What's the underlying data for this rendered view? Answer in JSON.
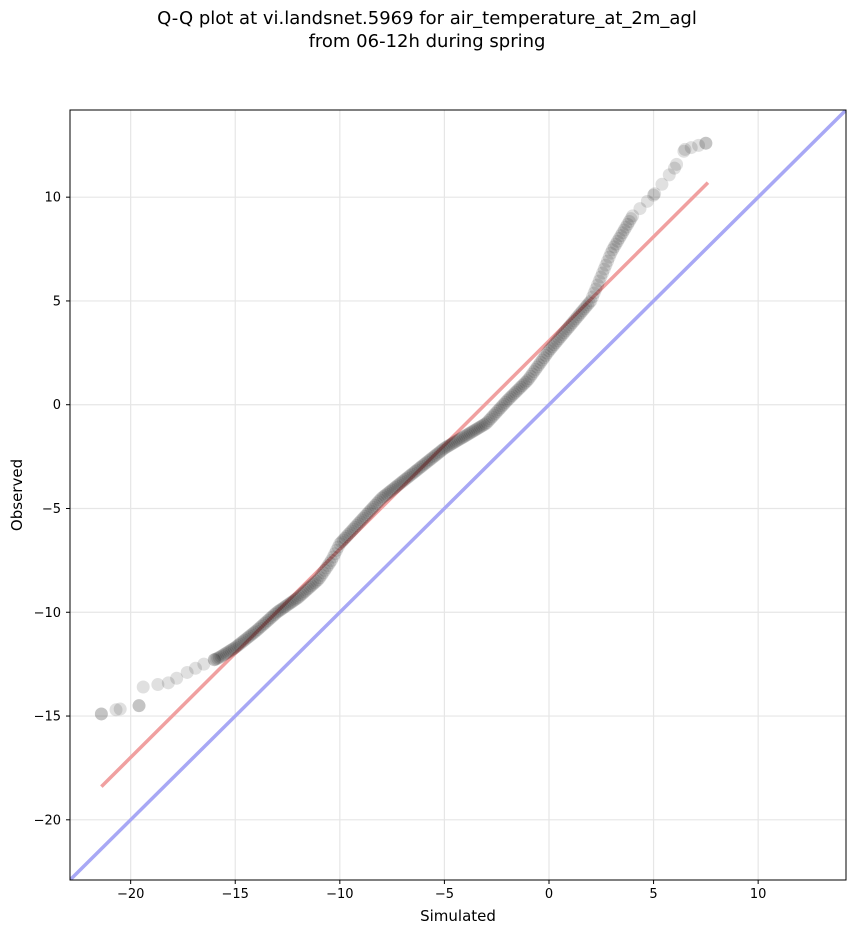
{
  "chart_data": {
    "type": "scatter",
    "title": "Q-Q plot at vi.landsnet.5969 for air_temperature_at_2m_agl",
    "subtitle": "from 06-12h during spring",
    "xlabel": "Simulated",
    "ylabel": "Observed",
    "xlim": [
      -22.9,
      14.2
    ],
    "ylim": [
      -22.9,
      14.2
    ],
    "xticks": [
      -20,
      -15,
      -10,
      -5,
      0,
      5,
      10
    ],
    "yticks": [
      -20,
      -15,
      -10,
      -5,
      0,
      5,
      10
    ],
    "xtick_labels": [
      "−20",
      "−15",
      "−10",
      "−5",
      "0",
      "5",
      "10"
    ],
    "ytick_labels": [
      "−20",
      "−15",
      "−10",
      "−5",
      "0",
      "5",
      "10"
    ],
    "grid": true,
    "colors": {
      "points": "#000000",
      "fit_line": "#f0a0a0",
      "identity_line": "#a8a8f5",
      "grid": "#e6e6e6"
    },
    "quantile_curve": [
      [
        -21.4,
        -14.9
      ],
      [
        -20.7,
        -14.7
      ],
      [
        -19.6,
        -14.5
      ],
      [
        -19.4,
        -13.6
      ],
      [
        -18.2,
        -13.4
      ],
      [
        -17.3,
        -12.9
      ],
      [
        -16.5,
        -12.5
      ],
      [
        -15.8,
        -12.2
      ],
      [
        -15.0,
        -11.7
      ],
      [
        -14.0,
        -10.9
      ],
      [
        -13.0,
        -10.0
      ],
      [
        -12.0,
        -9.3
      ],
      [
        -11.0,
        -8.4
      ],
      [
        -10.4,
        -7.5
      ],
      [
        -10.0,
        -6.7
      ],
      [
        -9.0,
        -5.6
      ],
      [
        -8.0,
        -4.5
      ],
      [
        -7.0,
        -3.7
      ],
      [
        -6.0,
        -2.9
      ],
      [
        -5.0,
        -2.1
      ],
      [
        -4.0,
        -1.5
      ],
      [
        -3.0,
        -0.9
      ],
      [
        -2.0,
        0.2
      ],
      [
        -1.0,
        1.2
      ],
      [
        0.0,
        2.6
      ],
      [
        1.0,
        3.8
      ],
      [
        2.0,
        5.0
      ],
      [
        3.0,
        7.4
      ],
      [
        4.0,
        9.1
      ],
      [
        5.0,
        10.1
      ],
      [
        6.0,
        11.4
      ],
      [
        6.5,
        12.3
      ],
      [
        7.5,
        12.6
      ]
    ],
    "fit_line": {
      "x": [
        -21.4,
        7.6
      ],
      "y": [
        -18.4,
        10.7
      ]
    },
    "identity_line": {
      "x": [
        -22.9,
        14.2
      ],
      "y": [
        -22.9,
        14.2
      ]
    }
  }
}
